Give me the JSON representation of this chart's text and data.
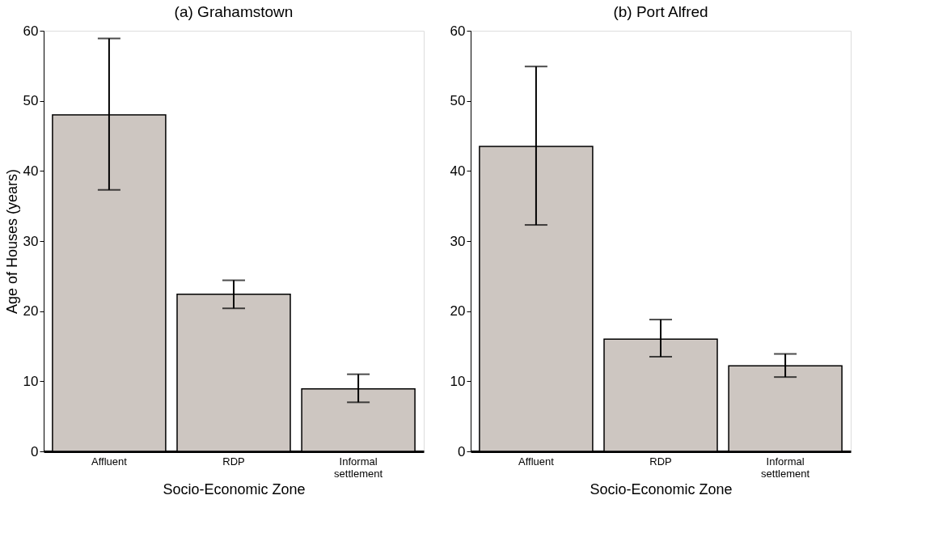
{
  "chart_data": [
    {
      "type": "bar",
      "title": "(a) Grahamstown",
      "xlabel": "Socio-Economic Zone",
      "ylabel": "Age of Houses (years)",
      "categories": [
        "Affluent",
        "RDP",
        "Informal settlement"
      ],
      "values": [
        48,
        22.4,
        8.9
      ],
      "errors": [
        [
          37.3,
          58.9
        ],
        [
          20.4,
          24.4
        ],
        [
          7,
          11
        ]
      ],
      "color": "#cdc6c1",
      "ylim": [
        0,
        60
      ],
      "yticks": [
        0,
        10,
        20,
        30,
        40,
        50,
        60
      ],
      "grid": false
    },
    {
      "type": "bar",
      "title": "(b) Port Alfred",
      "xlabel": "Socio-Economic Zone",
      "categories": [
        "Affluent",
        "RDP",
        "Informal settlement"
      ],
      "values": [
        43.5,
        16.0,
        12.2
      ],
      "errors": [
        [
          32.3,
          54.9
        ],
        [
          13.5,
          18.8
        ],
        [
          10.6,
          13.9
        ]
      ],
      "color": "#cdc6c1",
      "ylim": [
        0,
        60
      ],
      "yticks": [
        0,
        10,
        20,
        30,
        40,
        50,
        60
      ],
      "grid": false
    }
  ]
}
